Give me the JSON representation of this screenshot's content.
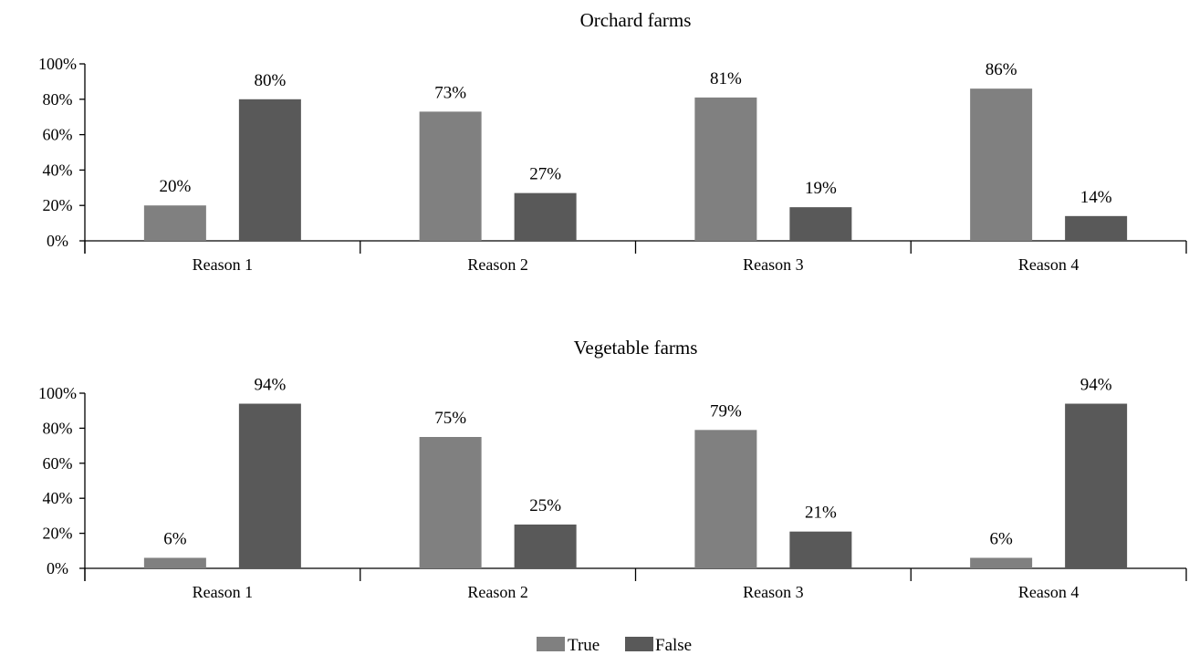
{
  "chart_data": [
    {
      "type": "bar",
      "title": "Orchard farms",
      "categories": [
        "Reason 1",
        "Reason 2",
        "Reason 3",
        "Reason 4"
      ],
      "series": [
        {
          "name": "True",
          "values": [
            20,
            73,
            81,
            86
          ]
        },
        {
          "name": "False",
          "values": [
            80,
            27,
            19,
            14
          ]
        }
      ],
      "data_labels": [
        [
          "20%",
          "73%",
          "81%",
          "86%"
        ],
        [
          "80%",
          "27%",
          "19%",
          "14%"
        ]
      ],
      "yticks": [
        "0%",
        "20%",
        "40%",
        "60%",
        "80%",
        "100%"
      ],
      "ylim": [
        0,
        100
      ],
      "xlabel": "",
      "ylabel": "",
      "grid": false
    },
    {
      "type": "bar",
      "title": "Vegetable farms",
      "categories": [
        "Reason 1",
        "Reason 2",
        "Reason 3",
        "Reason 4"
      ],
      "series": [
        {
          "name": "True",
          "values": [
            6,
            75,
            79,
            6
          ]
        },
        {
          "name": "False",
          "values": [
            94,
            25,
            21,
            94
          ]
        }
      ],
      "data_labels": [
        [
          "6%",
          "75%",
          "79%",
          "6%"
        ],
        [
          "94%",
          "25%",
          "21%",
          "94%"
        ]
      ],
      "yticks": [
        "0%",
        "20%",
        "40%",
        "60%",
        "80%",
        "100%"
      ],
      "ylim": [
        0,
        100
      ],
      "xlabel": "",
      "ylabel": "",
      "grid": false
    }
  ],
  "legend": {
    "position": "bottom-center",
    "items": [
      {
        "label": "True",
        "color": "#808080"
      },
      {
        "label": "False",
        "color": "#595959"
      }
    ]
  },
  "colors": {
    "true": "#808080",
    "false": "#595959",
    "axis": "#000000"
  }
}
